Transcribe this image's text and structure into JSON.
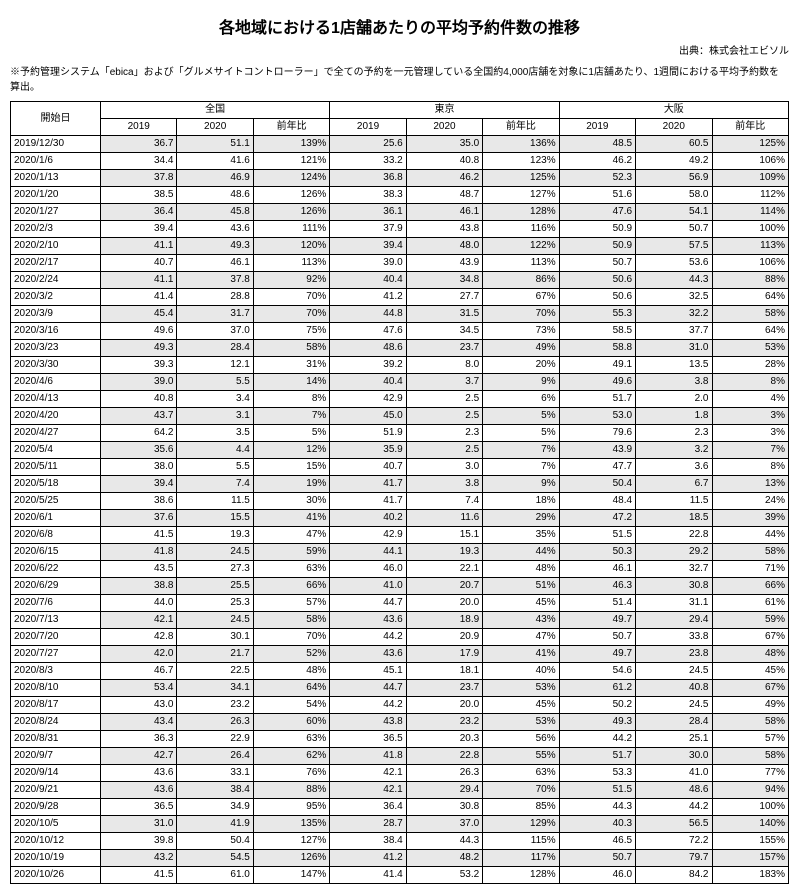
{
  "title": "各地域における1店舗あたりの平均予約件数の推移",
  "source": "出典：株式会社エビソル",
  "note": "※予約管理システム「ebica」および「グルメサイトコントローラー」で全ての予約を一元管理している全国約4,000店舗を対象に1店舗あたり、1週間における平均予約数を算出。",
  "header": {
    "date_label": "開始日",
    "regions": [
      "全国",
      "東京",
      "大阪"
    ],
    "subcols": [
      "2019",
      "2020",
      "前年比"
    ]
  },
  "rows": [
    {
      "date": "2019/12/30",
      "vals": [
        "36.7",
        "51.1",
        "139%",
        "25.6",
        "35.0",
        "136%",
        "48.5",
        "60.5",
        "125%"
      ]
    },
    {
      "date": "2020/1/6",
      "vals": [
        "34.4",
        "41.6",
        "121%",
        "33.2",
        "40.8",
        "123%",
        "46.2",
        "49.2",
        "106%"
      ]
    },
    {
      "date": "2020/1/13",
      "vals": [
        "37.8",
        "46.9",
        "124%",
        "36.8",
        "46.2",
        "125%",
        "52.3",
        "56.9",
        "109%"
      ]
    },
    {
      "date": "2020/1/20",
      "vals": [
        "38.5",
        "48.6",
        "126%",
        "38.3",
        "48.7",
        "127%",
        "51.6",
        "58.0",
        "112%"
      ]
    },
    {
      "date": "2020/1/27",
      "vals": [
        "36.4",
        "45.8",
        "126%",
        "36.1",
        "46.1",
        "128%",
        "47.6",
        "54.1",
        "114%"
      ]
    },
    {
      "date": "2020/2/3",
      "vals": [
        "39.4",
        "43.6",
        "111%",
        "37.9",
        "43.8",
        "116%",
        "50.9",
        "50.7",
        "100%"
      ]
    },
    {
      "date": "2020/2/10",
      "vals": [
        "41.1",
        "49.3",
        "120%",
        "39.4",
        "48.0",
        "122%",
        "50.9",
        "57.5",
        "113%"
      ]
    },
    {
      "date": "2020/2/17",
      "vals": [
        "40.7",
        "46.1",
        "113%",
        "39.0",
        "43.9",
        "113%",
        "50.7",
        "53.6",
        "106%"
      ]
    },
    {
      "date": "2020/2/24",
      "vals": [
        "41.1",
        "37.8",
        "92%",
        "40.4",
        "34.8",
        "86%",
        "50.6",
        "44.3",
        "88%"
      ]
    },
    {
      "date": "2020/3/2",
      "vals": [
        "41.4",
        "28.8",
        "70%",
        "41.2",
        "27.7",
        "67%",
        "50.6",
        "32.5",
        "64%"
      ]
    },
    {
      "date": "2020/3/9",
      "vals": [
        "45.4",
        "31.7",
        "70%",
        "44.8",
        "31.5",
        "70%",
        "55.3",
        "32.2",
        "58%"
      ]
    },
    {
      "date": "2020/3/16",
      "vals": [
        "49.6",
        "37.0",
        "75%",
        "47.6",
        "34.5",
        "73%",
        "58.5",
        "37.7",
        "64%"
      ]
    },
    {
      "date": "2020/3/23",
      "vals": [
        "49.3",
        "28.4",
        "58%",
        "48.6",
        "23.7",
        "49%",
        "58.8",
        "31.0",
        "53%"
      ]
    },
    {
      "date": "2020/3/30",
      "vals": [
        "39.3",
        "12.1",
        "31%",
        "39.2",
        "8.0",
        "20%",
        "49.1",
        "13.5",
        "28%"
      ]
    },
    {
      "date": "2020/4/6",
      "vals": [
        "39.0",
        "5.5",
        "14%",
        "40.4",
        "3.7",
        "9%",
        "49.6",
        "3.8",
        "8%"
      ]
    },
    {
      "date": "2020/4/13",
      "vals": [
        "40.8",
        "3.4",
        "8%",
        "42.9",
        "2.5",
        "6%",
        "51.7",
        "2.0",
        "4%"
      ]
    },
    {
      "date": "2020/4/20",
      "vals": [
        "43.7",
        "3.1",
        "7%",
        "45.0",
        "2.5",
        "5%",
        "53.0",
        "1.8",
        "3%"
      ]
    },
    {
      "date": "2020/4/27",
      "vals": [
        "64.2",
        "3.5",
        "5%",
        "51.9",
        "2.3",
        "5%",
        "79.6",
        "2.3",
        "3%"
      ]
    },
    {
      "date": "2020/5/4",
      "vals": [
        "35.6",
        "4.4",
        "12%",
        "35.9",
        "2.5",
        "7%",
        "43.9",
        "3.2",
        "7%"
      ]
    },
    {
      "date": "2020/5/11",
      "vals": [
        "38.0",
        "5.5",
        "15%",
        "40.7",
        "3.0",
        "7%",
        "47.7",
        "3.6",
        "8%"
      ]
    },
    {
      "date": "2020/5/18",
      "vals": [
        "39.4",
        "7.4",
        "19%",
        "41.7",
        "3.8",
        "9%",
        "50.4",
        "6.7",
        "13%"
      ]
    },
    {
      "date": "2020/5/25",
      "vals": [
        "38.6",
        "11.5",
        "30%",
        "41.7",
        "7.4",
        "18%",
        "48.4",
        "11.5",
        "24%"
      ]
    },
    {
      "date": "2020/6/1",
      "vals": [
        "37.6",
        "15.5",
        "41%",
        "40.2",
        "11.6",
        "29%",
        "47.2",
        "18.5",
        "39%"
      ]
    },
    {
      "date": "2020/6/8",
      "vals": [
        "41.5",
        "19.3",
        "47%",
        "42.9",
        "15.1",
        "35%",
        "51.5",
        "22.8",
        "44%"
      ]
    },
    {
      "date": "2020/6/15",
      "vals": [
        "41.8",
        "24.5",
        "59%",
        "44.1",
        "19.3",
        "44%",
        "50.3",
        "29.2",
        "58%"
      ]
    },
    {
      "date": "2020/6/22",
      "vals": [
        "43.5",
        "27.3",
        "63%",
        "46.0",
        "22.1",
        "48%",
        "46.1",
        "32.7",
        "71%"
      ]
    },
    {
      "date": "2020/6/29",
      "vals": [
        "38.8",
        "25.5",
        "66%",
        "41.0",
        "20.7",
        "51%",
        "46.3",
        "30.8",
        "66%"
      ]
    },
    {
      "date": "2020/7/6",
      "vals": [
        "44.0",
        "25.3",
        "57%",
        "44.7",
        "20.0",
        "45%",
        "51.4",
        "31.1",
        "61%"
      ]
    },
    {
      "date": "2020/7/13",
      "vals": [
        "42.1",
        "24.5",
        "58%",
        "43.6",
        "18.9",
        "43%",
        "49.7",
        "29.4",
        "59%"
      ]
    },
    {
      "date": "2020/7/20",
      "vals": [
        "42.8",
        "30.1",
        "70%",
        "44.2",
        "20.9",
        "47%",
        "50.7",
        "33.8",
        "67%"
      ]
    },
    {
      "date": "2020/7/27",
      "vals": [
        "42.0",
        "21.7",
        "52%",
        "43.6",
        "17.9",
        "41%",
        "49.7",
        "23.8",
        "48%"
      ]
    },
    {
      "date": "2020/8/3",
      "vals": [
        "46.7",
        "22.5",
        "48%",
        "45.1",
        "18.1",
        "40%",
        "54.6",
        "24.5",
        "45%"
      ]
    },
    {
      "date": "2020/8/10",
      "vals": [
        "53.4",
        "34.1",
        "64%",
        "44.7",
        "23.7",
        "53%",
        "61.2",
        "40.8",
        "67%"
      ]
    },
    {
      "date": "2020/8/17",
      "vals": [
        "43.0",
        "23.2",
        "54%",
        "44.2",
        "20.0",
        "45%",
        "50.2",
        "24.5",
        "49%"
      ]
    },
    {
      "date": "2020/8/24",
      "vals": [
        "43.4",
        "26.3",
        "60%",
        "43.8",
        "23.2",
        "53%",
        "49.3",
        "28.4",
        "58%"
      ]
    },
    {
      "date": "2020/8/31",
      "vals": [
        "36.3",
        "22.9",
        "63%",
        "36.5",
        "20.3",
        "56%",
        "44.2",
        "25.1",
        "57%"
      ]
    },
    {
      "date": "2020/9/7",
      "vals": [
        "42.7",
        "26.4",
        "62%",
        "41.8",
        "22.8",
        "55%",
        "51.7",
        "30.0",
        "58%"
      ]
    },
    {
      "date": "2020/9/14",
      "vals": [
        "43.6",
        "33.1",
        "76%",
        "42.1",
        "26.3",
        "63%",
        "53.3",
        "41.0",
        "77%"
      ]
    },
    {
      "date": "2020/9/21",
      "vals": [
        "43.6",
        "38.4",
        "88%",
        "42.1",
        "29.4",
        "70%",
        "51.5",
        "48.6",
        "94%"
      ]
    },
    {
      "date": "2020/9/28",
      "vals": [
        "36.5",
        "34.9",
        "95%",
        "36.4",
        "30.8",
        "85%",
        "44.3",
        "44.2",
        "100%"
      ]
    },
    {
      "date": "2020/10/5",
      "vals": [
        "31.0",
        "41.9",
        "135%",
        "28.7",
        "37.0",
        "129%",
        "40.3",
        "56.5",
        "140%"
      ]
    },
    {
      "date": "2020/10/12",
      "vals": [
        "39.8",
        "50.4",
        "127%",
        "38.4",
        "44.3",
        "115%",
        "46.5",
        "72.2",
        "155%"
      ]
    },
    {
      "date": "2020/10/19",
      "vals": [
        "43.2",
        "54.5",
        "126%",
        "41.2",
        "48.2",
        "117%",
        "50.7",
        "79.7",
        "157%"
      ]
    },
    {
      "date": "2020/10/26",
      "vals": [
        "41.5",
        "61.0",
        "147%",
        "41.4",
        "53.2",
        "128%",
        "46.0",
        "84.2",
        "183%"
      ]
    }
  ]
}
